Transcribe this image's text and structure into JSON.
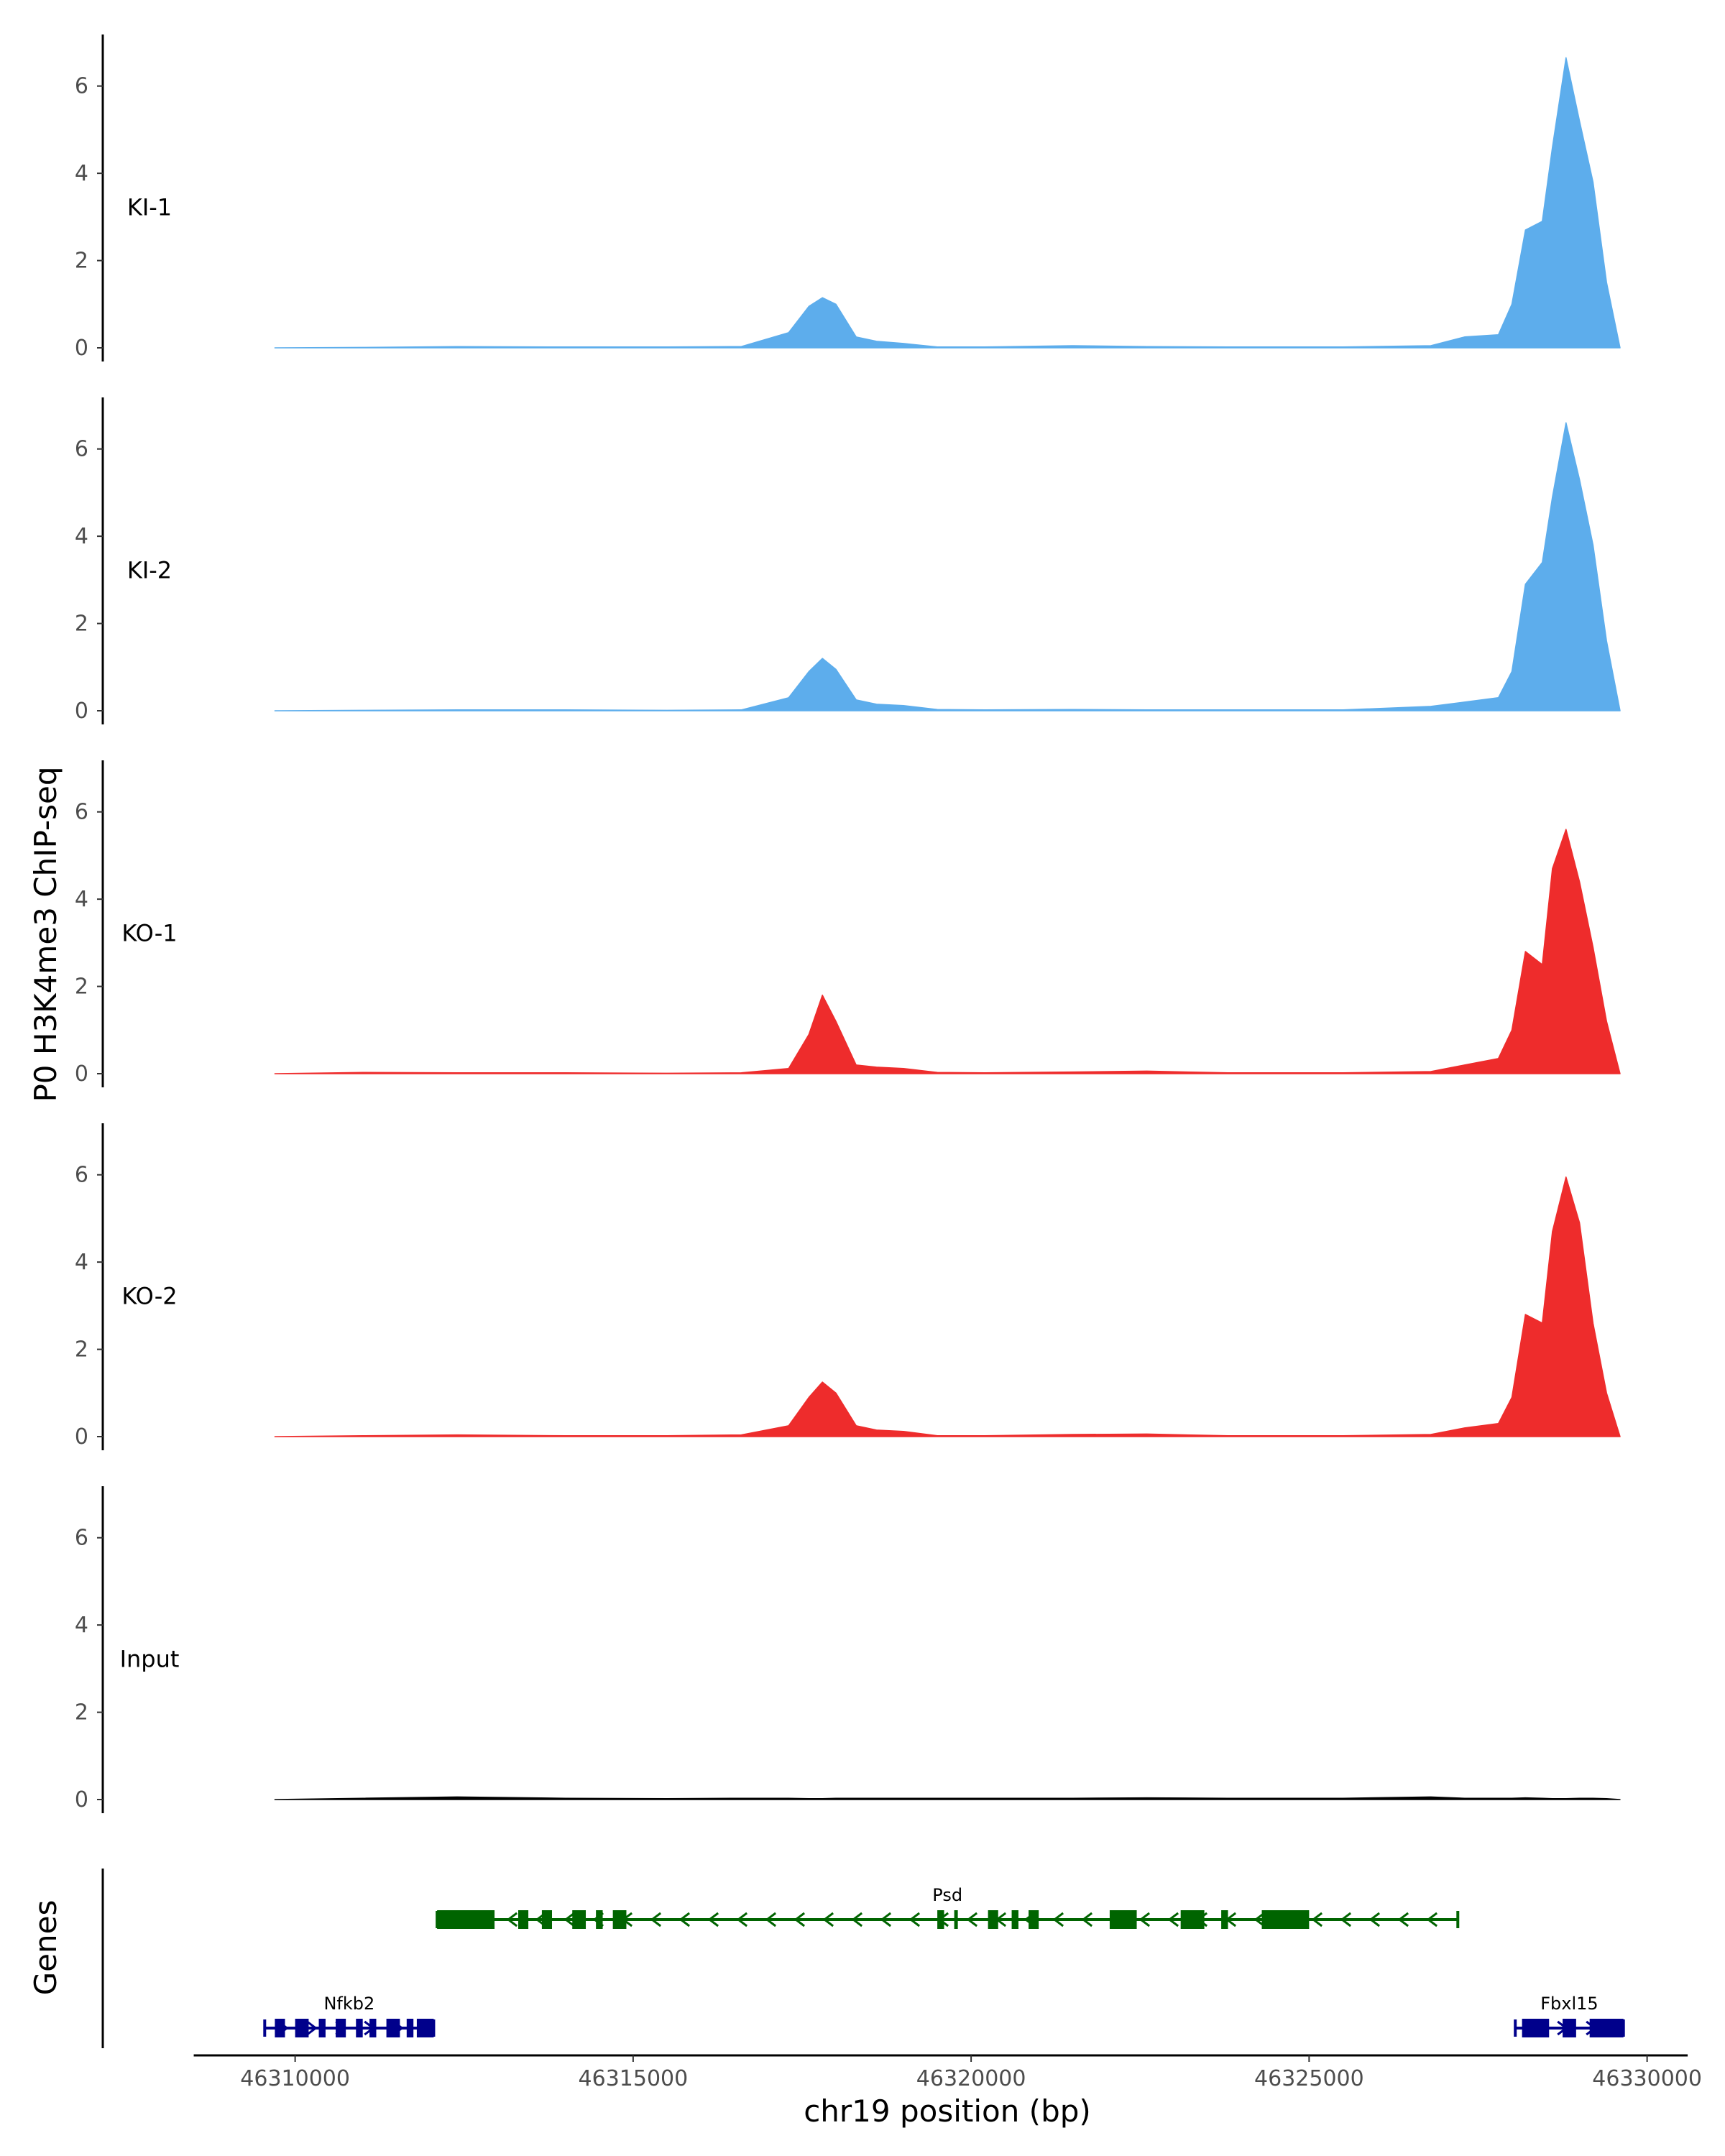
{
  "chart_data": {
    "type": "area",
    "title": "",
    "ylabel": "P0 H3K4me3 ChIP-seq",
    "xlabel": "chr19 position (bp)",
    "genes_label": "Genes",
    "ylim": [
      0,
      7
    ],
    "yticks": [
      0,
      2,
      4,
      6
    ],
    "xlim": [
      46308500,
      46330600
    ],
    "xticks": [
      46310000,
      46315000,
      46320000,
      46325000,
      46330000
    ],
    "xtick_labels": [
      "46310000",
      "46315000",
      "46320000",
      "46325000",
      "46330000"
    ],
    "x": [
      46309700,
      46311000,
      46312400,
      46314000,
      46315500,
      46316600,
      46317300,
      46317600,
      46317800,
      46318000,
      46318300,
      46318600,
      46319000,
      46319500,
      46320200,
      46321500,
      46322600,
      46323800,
      46325500,
      46326800,
      46327300,
      46327800,
      46328000,
      46328200,
      46328450,
      46328600,
      46328800,
      46329000,
      46329200,
      46329400,
      46329600
    ],
    "series": [
      {
        "name": "KI-1",
        "color": "#5DADEC",
        "values": [
          0,
          0.01,
          0.03,
          0.02,
          0.02,
          0.03,
          0.35,
          0.95,
          1.15,
          1.0,
          0.25,
          0.15,
          0.1,
          0.02,
          0.02,
          0.05,
          0.03,
          0.02,
          0.02,
          0.05,
          0.25,
          0.3,
          1.0,
          2.7,
          2.9,
          4.6,
          6.65,
          5.2,
          3.8,
          1.5,
          0
        ]
      },
      {
        "name": "KI-2",
        "color": "#5DADEC",
        "values": [
          0,
          0.01,
          0.02,
          0.02,
          0.01,
          0.02,
          0.3,
          0.9,
          1.2,
          0.95,
          0.25,
          0.15,
          0.12,
          0.03,
          0.02,
          0.03,
          0.02,
          0.02,
          0.02,
          0.1,
          0.2,
          0.3,
          0.9,
          2.9,
          3.4,
          4.9,
          6.6,
          5.3,
          3.8,
          1.6,
          0
        ]
      },
      {
        "name": "KO-1",
        "color": "#EE2C2C",
        "values": [
          0,
          0.03,
          0.02,
          0.02,
          0.01,
          0.02,
          0.12,
          0.9,
          1.8,
          1.2,
          0.2,
          0.15,
          0.12,
          0.03,
          0.02,
          0.04,
          0.06,
          0.02,
          0.02,
          0.05,
          0.2,
          0.35,
          1.0,
          2.8,
          2.5,
          4.7,
          5.6,
          4.4,
          2.9,
          1.2,
          0
        ]
      },
      {
        "name": "KO-2",
        "color": "#EE2C2C",
        "values": [
          0,
          0.02,
          0.04,
          0.02,
          0.02,
          0.04,
          0.25,
          0.9,
          1.25,
          1.0,
          0.25,
          0.15,
          0.12,
          0.02,
          0.02,
          0.05,
          0.06,
          0.02,
          0.02,
          0.05,
          0.2,
          0.3,
          0.9,
          2.8,
          2.6,
          4.7,
          5.95,
          4.9,
          2.6,
          1.0,
          0
        ]
      },
      {
        "name": "Input",
        "color": "#000000",
        "values": [
          0,
          0.03,
          0.06,
          0.03,
          0.02,
          0.03,
          0.03,
          0.02,
          0.02,
          0.03,
          0.03,
          0.03,
          0.03,
          0.03,
          0.03,
          0.03,
          0.04,
          0.03,
          0.03,
          0.06,
          0.03,
          0.03,
          0.03,
          0.04,
          0.03,
          0.02,
          0.02,
          0.03,
          0.03,
          0.02,
          0
        ]
      }
    ],
    "genes": [
      {
        "name": "Psd",
        "color": "#006400",
        "strand": "-",
        "row": 1,
        "start": 46312100,
        "end": 46327200,
        "label_x": 46319650,
        "exons": [
          [
            46312100,
            46312950
          ],
          [
            46313300,
            46313450
          ],
          [
            46313650,
            46313800
          ],
          [
            46314100,
            46314300
          ],
          [
            46314450,
            46314550
          ],
          [
            46314700,
            46314900
          ],
          [
            46319500,
            46319600
          ],
          [
            46319750,
            46319800
          ],
          [
            46320250,
            46320400
          ],
          [
            46320600,
            46320700
          ],
          [
            46320850,
            46321000
          ],
          [
            46322050,
            46322450
          ],
          [
            46323100,
            46323450
          ],
          [
            46323700,
            46323800
          ],
          [
            46324300,
            46325000
          ]
        ]
      },
      {
        "name": "Nfkb2",
        "color": "#00008B",
        "strand": "+",
        "row": 2,
        "start": 46309550,
        "end": 46312050,
        "label_x": 46310800,
        "exons": [
          [
            46309700,
            46309850
          ],
          [
            46310000,
            46310200
          ],
          [
            46310350,
            46310450
          ],
          [
            46310600,
            46310750
          ],
          [
            46310900,
            46311000
          ],
          [
            46311100,
            46311200
          ],
          [
            46311350,
            46311550
          ],
          [
            46311650,
            46311750
          ],
          [
            46311800,
            46312050
          ]
        ]
      },
      {
        "name": "Fbxl15",
        "color": "#00008B",
        "strand": "+",
        "row": 2,
        "start": 46328050,
        "end": 46329650,
        "label_x": 46328850,
        "exons": [
          [
            46328150,
            46328550
          ],
          [
            46328750,
            46328950
          ],
          [
            46329150,
            46329650
          ]
        ]
      }
    ]
  }
}
